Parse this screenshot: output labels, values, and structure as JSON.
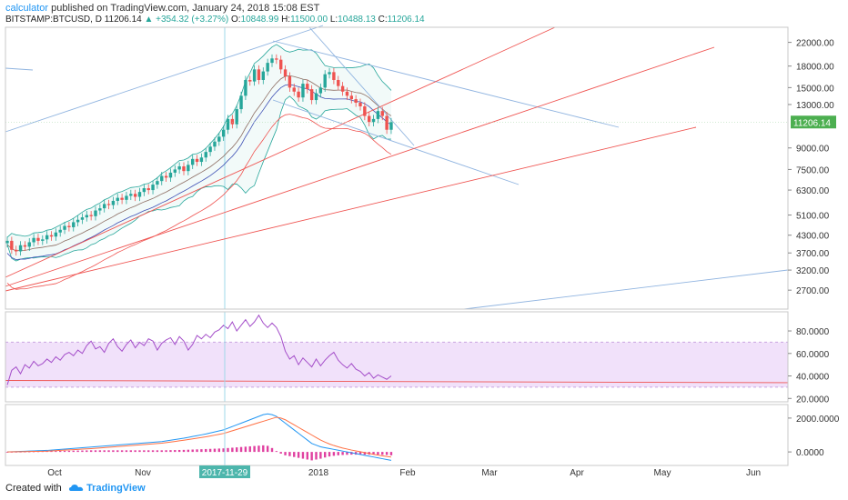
{
  "header": {
    "author": "calculator",
    "published_text": "published on TradingView.com, January 24, 2018 15:08 EST",
    "symbol": "BITSTAMP:BTCUSD, D",
    "last": "11206.14",
    "change": "+354.32 (+3.27%)",
    "open_label": "O:",
    "open": "10848.99",
    "high_label": "H:",
    "high": "11500.00",
    "low_label": "L:",
    "low": "10488.13",
    "close_label": "C:",
    "close": "11206.14"
  },
  "footer": {
    "created_with": "Created with",
    "brand": "TradingView"
  },
  "colors": {
    "up": "#26a69a",
    "down": "#ef5350",
    "price_tag": "#4caf50",
    "rsi_band": "#e6c8f5",
    "trend_blue": "#90b4e0",
    "trend_red": "#ef5350",
    "macd": "#2196f3",
    "signal": "#ff7043"
  },
  "chart_data": [
    {
      "type": "line",
      "panel": "price",
      "scale": "log",
      "ylim": [
        2300,
        25000
      ],
      "y_ticks": [
        "22000.00",
        "18000.00",
        "15000.00",
        "13000.00",
        "11206.14",
        "9000.00",
        "7500.00",
        "6300.00",
        "5100.00",
        "4300.00",
        "3700.00",
        "3200.00",
        "2700.00"
      ],
      "y_tick_values": [
        22000,
        18000,
        15000,
        13000,
        11206.14,
        9000,
        7500,
        6300,
        5100,
        4300,
        3700,
        3200,
        2700
      ],
      "current_price": "11206.14",
      "x_labels": [
        "Oct",
        "Nov",
        "2017-11-29",
        "2018",
        "Feb",
        "Mar",
        "Apr",
        "May",
        "Jun"
      ],
      "highlighted_date": "2017-11-29",
      "candles_close": [
        4100,
        3800,
        3750,
        3950,
        3900,
        4050,
        4200,
        4100,
        4150,
        4300,
        4250,
        4400,
        4500,
        4650,
        4600,
        4800,
        4900,
        5000,
        5100,
        5050,
        5300,
        5400,
        5600,
        5550,
        5750,
        5900,
        5800,
        6000,
        6100,
        5950,
        6200,
        6400,
        6300,
        6600,
        6800,
        7100,
        7000,
        7300,
        7500,
        7700,
        7400,
        7800,
        8200,
        8000,
        8300,
        8700,
        9100,
        9500,
        9900,
        10500,
        11500,
        11000,
        12500,
        14000,
        16000,
        15800,
        17500,
        16000,
        17200,
        18500,
        19200,
        19000,
        17500,
        16500,
        15000,
        14500,
        13800,
        15500,
        14800,
        13500,
        14300,
        15000,
        16800,
        17100,
        16000,
        15200,
        14500,
        14000,
        13600,
        13200,
        12800,
        11800,
        11200,
        11500,
        12300,
        11800,
        10500,
        11206
      ]
    },
    {
      "type": "line",
      "panel": "rsi",
      "ylim": [
        17,
        97
      ],
      "y_ticks": [
        "80.0000",
        "60.0000",
        "40.0000",
        "20.0000"
      ],
      "y_tick_values": [
        80,
        60,
        40,
        20
      ],
      "band": [
        30,
        70
      ],
      "values": [
        32,
        45,
        48,
        42,
        50,
        47,
        53,
        49,
        51,
        55,
        52,
        57,
        54,
        59,
        61,
        58,
        63,
        60,
        67,
        71,
        64,
        66,
        61,
        69,
        73,
        66,
        62,
        68,
        72,
        65,
        70,
        67,
        73,
        71,
        63,
        69,
        72,
        74,
        68,
        75,
        71,
        63,
        68,
        76,
        73,
        77,
        74,
        79,
        81,
        85,
        82,
        88,
        80,
        85,
        90,
        84,
        88,
        94,
        87,
        83,
        87,
        83,
        75,
        62,
        55,
        58,
        50,
        56,
        52,
        48,
        55,
        49,
        54,
        58,
        61,
        54,
        50,
        47,
        51,
        46,
        44,
        40,
        43,
        38,
        41,
        39,
        37,
        40
      ]
    },
    {
      "type": "bar",
      "panel": "macd",
      "ylim": [
        -800,
        2800
      ],
      "y_ticks": [
        "2000.0000",
        "0.0000"
      ],
      "y_tick_values": [
        2000,
        0
      ],
      "macd": [
        0,
        10,
        20,
        30,
        40,
        50,
        60,
        70,
        80,
        90,
        110,
        130,
        150,
        170,
        190,
        210,
        230,
        250,
        270,
        290,
        310,
        330,
        350,
        370,
        390,
        410,
        430,
        450,
        470,
        490,
        510,
        530,
        550,
        570,
        590,
        610,
        650,
        690,
        730,
        770,
        810,
        860,
        910,
        960,
        1010,
        1060,
        1120,
        1180,
        1240,
        1300,
        1400,
        1500,
        1600,
        1700,
        1800,
        1900,
        2000,
        2100,
        2200,
        2250,
        2200,
        2100,
        1900,
        1700,
        1500,
        1300,
        1100,
        900,
        700,
        500,
        400,
        300,
        250,
        200,
        150,
        100,
        50,
        0,
        -50,
        -100,
        -150,
        -200,
        -250,
        -300,
        -350,
        -400,
        -450,
        -500
      ],
      "signal": [
        0,
        5,
        10,
        15,
        20,
        25,
        30,
        35,
        40,
        45,
        60,
        75,
        90,
        105,
        120,
        135,
        150,
        165,
        180,
        195,
        215,
        235,
        255,
        275,
        295,
        315,
        335,
        355,
        375,
        395,
        415,
        435,
        455,
        475,
        495,
        515,
        550,
        585,
        620,
        655,
        690,
        730,
        770,
        810,
        850,
        890,
        940,
        990,
        1040,
        1090,
        1170,
        1250,
        1330,
        1410,
        1490,
        1570,
        1650,
        1730,
        1810,
        1890,
        1970,
        2050,
        2000,
        1900,
        1750,
        1600,
        1450,
        1300,
        1150,
        1000,
        850,
        700,
        580,
        470,
        380,
        300,
        230,
        170,
        110,
        60,
        10,
        -40,
        -90,
        -140,
        -190,
        -230,
        -270,
        -300
      ]
    }
  ]
}
